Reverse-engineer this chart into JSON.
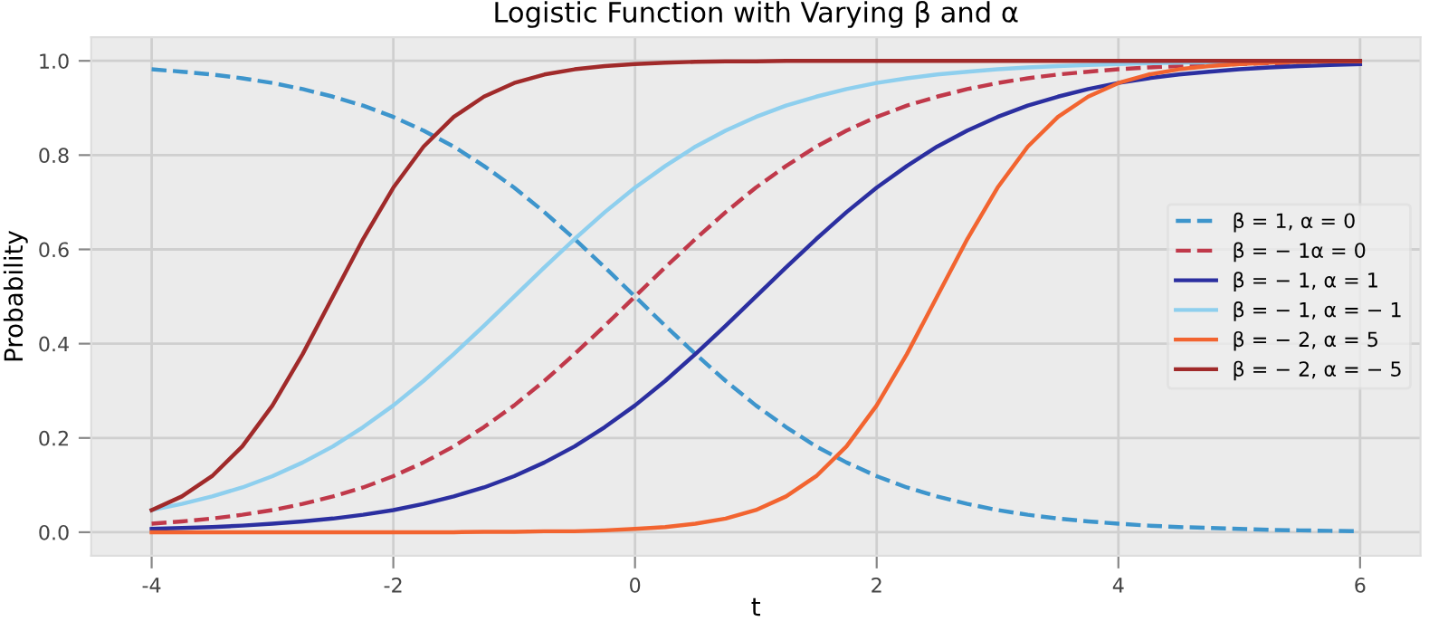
{
  "chart_data": {
    "type": "line",
    "title": "Logistic Function with Varying β and α",
    "xlabel": "t",
    "ylabel": "Probability",
    "x": [
      -4,
      -3.75,
      -3.5,
      -3.25,
      -3,
      -2.75,
      -2.5,
      -2.25,
      -2,
      -1.75,
      -1.5,
      -1.25,
      -1,
      -0.75,
      -0.5,
      -0.25,
      0,
      0.25,
      0.5,
      0.75,
      1,
      1.25,
      1.5,
      1.75,
      2,
      2.25,
      2.5,
      2.75,
      3,
      3.25,
      3.5,
      3.75,
      4,
      4.25,
      4.5,
      4.75,
      5,
      5.25,
      5.5,
      5.75,
      6
    ],
    "xlim": [
      -4.5,
      6.5
    ],
    "xticks": [
      -4,
      -2,
      0,
      2,
      4,
      6
    ],
    "ylim": [
      -0.05,
      1.05
    ],
    "yticks": [
      {
        "value": 0,
        "label": "0.0"
      },
      {
        "value": 0.2,
        "label": "0.2"
      },
      {
        "value": 0.4,
        "label": "0.4"
      },
      {
        "value": 0.6,
        "label": "0.6"
      },
      {
        "value": 0.8,
        "label": "0.8"
      },
      {
        "value": 1,
        "label": "1.0"
      }
    ],
    "grid": true,
    "legend": "right",
    "marker": "none",
    "series": [
      {
        "name": "β = 1, α = 0",
        "color": "#3d95cc",
        "line_style": "dashed",
        "values": [
          0.982,
          0.977,
          0.971,
          0.963,
          0.953,
          0.94,
          0.924,
          0.905,
          0.881,
          0.852,
          0.818,
          0.777,
          0.731,
          0.679,
          0.622,
          0.562,
          0.5,
          0.438,
          0.378,
          0.321,
          0.269,
          0.223,
          0.182,
          0.148,
          0.119,
          0.095,
          0.076,
          0.06,
          0.047,
          0.037,
          0.029,
          0.023,
          0.018,
          0.014,
          0.011,
          0.009,
          0.007,
          0.005,
          0.004,
          0.003,
          0.002
        ]
      },
      {
        "name": "β = − 1α = 0",
        "color": "#c0394a",
        "line_style": "dashed",
        "values": [
          0.018,
          0.023,
          0.029,
          0.037,
          0.047,
          0.06,
          0.076,
          0.095,
          0.119,
          0.148,
          0.182,
          0.223,
          0.269,
          0.321,
          0.378,
          0.438,
          0.5,
          0.562,
          0.622,
          0.679,
          0.731,
          0.777,
          0.818,
          0.852,
          0.881,
          0.905,
          0.924,
          0.94,
          0.953,
          0.963,
          0.971,
          0.977,
          0.982,
          0.986,
          0.989,
          0.991,
          0.993,
          0.995,
          0.996,
          0.997,
          0.998
        ]
      },
      {
        "name": "β = − 1, α = 1",
        "color": "#2b2fa0",
        "line_style": "solid",
        "values": [
          0.007,
          0.009,
          0.011,
          0.014,
          0.018,
          0.023,
          0.029,
          0.037,
          0.047,
          0.06,
          0.076,
          0.095,
          0.119,
          0.148,
          0.182,
          0.223,
          0.269,
          0.321,
          0.378,
          0.438,
          0.5,
          0.562,
          0.622,
          0.679,
          0.731,
          0.777,
          0.818,
          0.852,
          0.881,
          0.905,
          0.924,
          0.94,
          0.953,
          0.963,
          0.971,
          0.977,
          0.982,
          0.986,
          0.989,
          0.991,
          0.993
        ]
      },
      {
        "name": "β = − 1, α = − 1",
        "color": "#8ecfee",
        "line_style": "solid",
        "values": [
          0.047,
          0.06,
          0.076,
          0.095,
          0.119,
          0.148,
          0.182,
          0.223,
          0.269,
          0.321,
          0.378,
          0.438,
          0.5,
          0.562,
          0.622,
          0.679,
          0.731,
          0.777,
          0.818,
          0.852,
          0.881,
          0.905,
          0.924,
          0.94,
          0.953,
          0.963,
          0.971,
          0.977,
          0.982,
          0.986,
          0.989,
          0.991,
          0.993,
          0.995,
          0.996,
          0.997,
          0.998,
          0.998,
          0.998,
          0.999,
          0.999
        ]
      },
      {
        "name": "β = − 2, α = 5",
        "color": "#f26430",
        "line_style": "solid",
        "values": [
          0,
          0,
          0,
          0,
          0,
          0,
          0,
          0,
          0,
          0,
          0,
          0.001,
          0.001,
          0.002,
          0.002,
          0.004,
          0.007,
          0.011,
          0.018,
          0.029,
          0.047,
          0.076,
          0.119,
          0.182,
          0.269,
          0.378,
          0.5,
          0.622,
          0.731,
          0.818,
          0.881,
          0.924,
          0.953,
          0.971,
          0.982,
          0.989,
          0.993,
          0.996,
          0.998,
          0.999,
          0.999
        ]
      },
      {
        "name": "β = − 2, α = − 5",
        "color": "#a02a2a",
        "line_style": "solid",
        "values": [
          0.047,
          0.076,
          0.119,
          0.182,
          0.269,
          0.378,
          0.5,
          0.622,
          0.731,
          0.818,
          0.881,
          0.924,
          0.953,
          0.971,
          0.982,
          0.989,
          0.993,
          0.996,
          0.998,
          0.999,
          0.999,
          1,
          1,
          1,
          1,
          1,
          1,
          1,
          1,
          1,
          1,
          1,
          1,
          1,
          1,
          1,
          1,
          1,
          1,
          1,
          1
        ]
      }
    ]
  }
}
